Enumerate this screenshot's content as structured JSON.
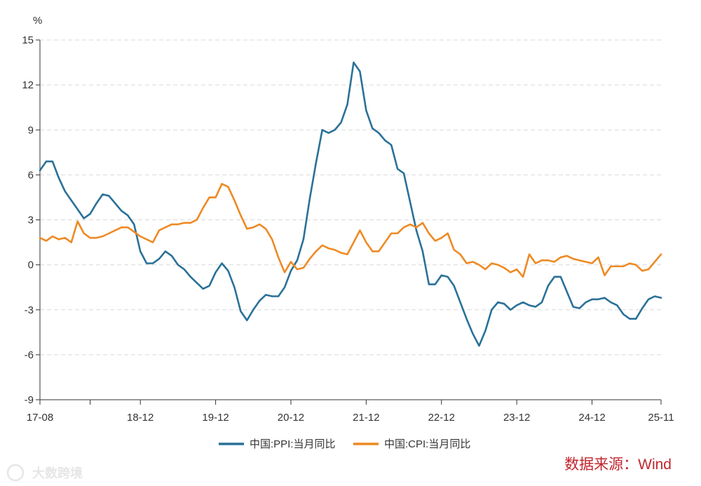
{
  "chart_data": {
    "type": "line",
    "unit": "%",
    "ylim": [
      -9,
      15
    ],
    "yticks": [
      -9,
      -6,
      -3,
      0,
      3,
      6,
      9,
      12,
      15
    ],
    "x_start": "2017-08",
    "x_end": "2025-11",
    "xtick_labels": [
      "17-08",
      "18-12",
      "19-12",
      "20-12",
      "21-12",
      "22-12",
      "23-12",
      "24-12",
      "25-11"
    ],
    "grid": "horizontal-dashed",
    "legend_position": "bottom-center",
    "series": [
      {
        "name": "中国:PPI:当月同比",
        "color": "#2a7198",
        "values": [
          6.3,
          6.9,
          6.9,
          5.8,
          4.9,
          4.3,
          3.7,
          3.1,
          3.4,
          4.1,
          4.7,
          4.6,
          4.1,
          3.6,
          3.3,
          2.7,
          0.9,
          0.1,
          0.1,
          0.4,
          0.9,
          0.6,
          0.0,
          -0.3,
          -0.8,
          -1.2,
          -1.6,
          -1.4,
          -0.5,
          0.1,
          -0.4,
          -1.5,
          -3.1,
          -3.7,
          -3.0,
          -2.4,
          -2.0,
          -2.1,
          -2.1,
          -1.5,
          -0.4,
          0.3,
          1.7,
          4.4,
          6.8,
          9.0,
          8.8,
          9.0,
          9.5,
          10.7,
          13.5,
          12.9,
          10.3,
          9.1,
          8.8,
          8.3,
          8.0,
          6.4,
          6.1,
          4.2,
          2.3,
          0.9,
          -1.3,
          -1.3,
          -0.7,
          -0.8,
          -1.4,
          -2.5,
          -3.6,
          -4.6,
          -5.4,
          -4.4,
          -3.0,
          -2.5,
          -2.6,
          -3.0,
          -2.7,
          -2.5,
          -2.7,
          -2.8,
          -2.5,
          -1.4,
          -0.8,
          -0.8,
          -1.8,
          -2.8,
          -2.9,
          -2.5,
          -2.3,
          -2.3,
          -2.2,
          -2.5,
          -2.7,
          -3.3,
          -3.6,
          -3.6,
          -2.9,
          -2.3,
          -2.1,
          -2.2
        ]
      },
      {
        "name": "中国:CPI:当月同比",
        "color": "#ee8a24",
        "values": [
          1.8,
          1.6,
          1.9,
          1.7,
          1.8,
          1.5,
          2.9,
          2.1,
          1.8,
          1.8,
          1.9,
          2.1,
          2.3,
          2.5,
          2.5,
          2.2,
          1.9,
          1.7,
          1.5,
          2.3,
          2.5,
          2.7,
          2.7,
          2.8,
          2.8,
          3.0,
          3.8,
          4.5,
          4.5,
          5.4,
          5.2,
          4.3,
          3.3,
          2.4,
          2.5,
          2.7,
          2.4,
          1.7,
          0.5,
          -0.5,
          0.2,
          -0.3,
          -0.2,
          0.4,
          0.9,
          1.3,
          1.1,
          1.0,
          0.8,
          0.7,
          1.5,
          2.3,
          1.5,
          0.9,
          0.9,
          1.5,
          2.1,
          2.1,
          2.5,
          2.7,
          2.5,
          2.8,
          2.1,
          1.6,
          1.8,
          2.1,
          1.0,
          0.7,
          0.1,
          0.2,
          0.0,
          -0.3,
          0.1,
          0.0,
          -0.2,
          -0.5,
          -0.3,
          -0.8,
          0.7,
          0.1,
          0.3,
          0.3,
          0.2,
          0.5,
          0.6,
          0.4,
          0.3,
          0.2,
          0.1,
          0.5,
          -0.7,
          -0.1,
          -0.1,
          -0.1,
          0.1,
          0.0,
          -0.4,
          -0.3,
          0.2,
          0.7
        ]
      }
    ]
  },
  "source": "数据来源：Wind",
  "watermark": "大数跨境"
}
